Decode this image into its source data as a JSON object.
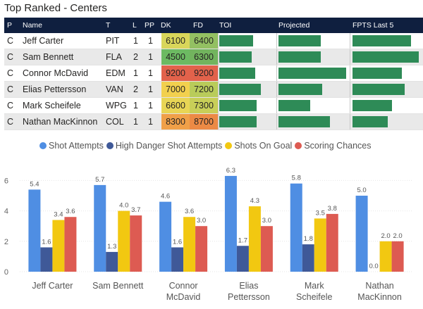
{
  "page": {
    "title": "Top Ranked - Centers"
  },
  "table": {
    "columns": [
      "P",
      "Name",
      "T",
      "L",
      "PP",
      "DK",
      "FD",
      "TOI",
      "Projected",
      "FPTS Last 5"
    ],
    "rows": [
      {
        "p": "C",
        "name": "Jeff Carter",
        "team": "PIT",
        "line": "1",
        "pp": "1",
        "dk": "6100",
        "fd": "6400",
        "dk_color": "#d9d65a",
        "fd_color": "#93c062",
        "toi": 0.62,
        "proj": 0.62,
        "fpts": 0.88
      },
      {
        "p": "C",
        "name": "Sam Bennett",
        "team": "FLA",
        "line": "2",
        "pp": "1",
        "dk": "4500",
        "fd": "6300",
        "dk_color": "#6cba62",
        "fd_color": "#72b45e",
        "toi": 0.59,
        "proj": 0.62,
        "fpts": 1.0
      },
      {
        "p": "C",
        "name": "Connor McDavid",
        "team": "EDM",
        "line": "1",
        "pp": "1",
        "dk": "9200",
        "fd": "9200",
        "dk_color": "#e2624b",
        "fd_color": "#e2624b",
        "toi": 0.65,
        "proj": 1.0,
        "fpts": 0.74
      },
      {
        "p": "C",
        "name": "Elias Pettersson",
        "team": "VAN",
        "line": "2",
        "pp": "1",
        "dk": "7000",
        "fd": "7200",
        "dk_color": "#f2d04e",
        "fd_color": "#b9cc5a",
        "toi": 0.75,
        "proj": 0.65,
        "fpts": 0.79
      },
      {
        "p": "C",
        "name": "Mark Scheifele",
        "team": "WPG",
        "line": "1",
        "pp": "1",
        "dk": "6600",
        "fd": "7300",
        "dk_color": "#e8d555",
        "fd_color": "#c8cf58",
        "toi": 0.68,
        "proj": 0.47,
        "fpts": 0.6
      },
      {
        "p": "C",
        "name": "Nathan MacKinnon",
        "team": "COL",
        "line": "1",
        "pp": "1",
        "dk": "8300",
        "fd": "8700",
        "dk_color": "#f0a048",
        "fd_color": "#ec8a45",
        "toi": 0.68,
        "proj": 0.76,
        "fpts": 0.53
      }
    ]
  },
  "chart_data": {
    "type": "bar",
    "categories": [
      "Jeff Carter",
      "Sam Bennett",
      "Connor McDavid",
      "Elias Pettersson",
      "Mark Scheifele",
      "Nathan MacKinnon"
    ],
    "category_lines": [
      [
        "Jeff Carter"
      ],
      [
        "Sam Bennett"
      ],
      [
        "Connor",
        "McDavid"
      ],
      [
        "Elias",
        "Pettersson"
      ],
      [
        "Mark",
        "Scheifele"
      ],
      [
        "Nathan",
        "MacKinnon"
      ]
    ],
    "series": [
      {
        "name": "Shot Attempts",
        "color": "#4f8ee3",
        "values": [
          5.4,
          5.7,
          4.6,
          6.3,
          5.8,
          5.0
        ],
        "labels": [
          "5.4",
          "5.7",
          "4.6",
          "6.3",
          "5.8",
          "5.0"
        ]
      },
      {
        "name": "High Danger Shot Attempts",
        "color": "#3f5998",
        "values": [
          1.6,
          1.3,
          1.6,
          1.7,
          1.8,
          0.0
        ],
        "labels": [
          "1.6",
          "1.3",
          "1.6",
          "1.7",
          "1.8",
          "0.0"
        ]
      },
      {
        "name": "Shots On Goal",
        "color": "#f2c811",
        "values": [
          3.4,
          4.0,
          3.6,
          4.3,
          3.5,
          2.0
        ],
        "labels": [
          "3.4",
          "4.0",
          "3.6",
          "4.3",
          "3.5",
          "2.0"
        ]
      },
      {
        "name": "Scoring Chances",
        "color": "#dd5b52",
        "values": [
          3.6,
          3.7,
          3.0,
          3.0,
          3.8,
          2.0
        ],
        "labels": [
          "3.6",
          "3.7",
          "3.0",
          "3.0",
          "3.8",
          "2.0"
        ]
      }
    ],
    "yticks": [
      "0",
      "2",
      "4",
      "6"
    ],
    "ylim": [
      0,
      7
    ],
    "title": "",
    "xlabel": "",
    "ylabel": ""
  }
}
